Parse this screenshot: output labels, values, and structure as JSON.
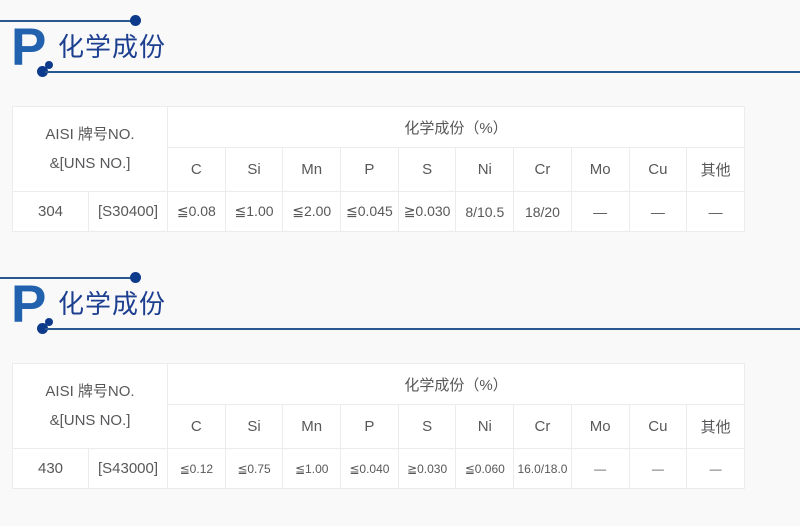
{
  "colors": {
    "accent_blue": "#2161ae",
    "navy_dot": "#0e3a8c",
    "heading_title": "#1d3f90",
    "rule_line": "#2a5891",
    "table_border": "#ececec",
    "cell_text": "#58585b",
    "page_bg": "#f9f9fa"
  },
  "sections": [
    {
      "heading": {
        "letter": "P",
        "title": "化学成份"
      },
      "table": {
        "id_col": {
          "line1": "AISI 牌号NO.",
          "line2": "&[UNS NO.]"
        },
        "group_header": "化学成份（%）",
        "columns": [
          "C",
          "Si",
          "Mn",
          "P",
          "S",
          "Ni",
          "Cr",
          "Mo",
          "Cu",
          "其他"
        ],
        "row": {
          "grade": "304",
          "uns": "[S30400]",
          "values": [
            "≦0.08",
            "≦1.00",
            "≦2.00",
            "≦0.045",
            "≧0.030",
            "8/10.5",
            "18/20",
            "—",
            "—",
            "—"
          ]
        }
      }
    },
    {
      "heading": {
        "letter": "P",
        "title": "化学成份"
      },
      "table": {
        "id_col": {
          "line1": "AISI 牌号NO.",
          "line2": "&[UNS NO.]"
        },
        "group_header": "化学成份（%）",
        "columns": [
          "C",
          "Si",
          "Mn",
          "P",
          "S",
          "Ni",
          "Cr",
          "Mo",
          "Cu",
          "其他"
        ],
        "row": {
          "grade": "430",
          "uns": "[S43000]",
          "values": [
            "≦0.12",
            "≦0.75",
            "≦1.00",
            "≦0.040",
            "≧0.030",
            "≦0.060",
            "16.0/18.0",
            "—",
            "—",
            "—"
          ]
        }
      }
    }
  ]
}
